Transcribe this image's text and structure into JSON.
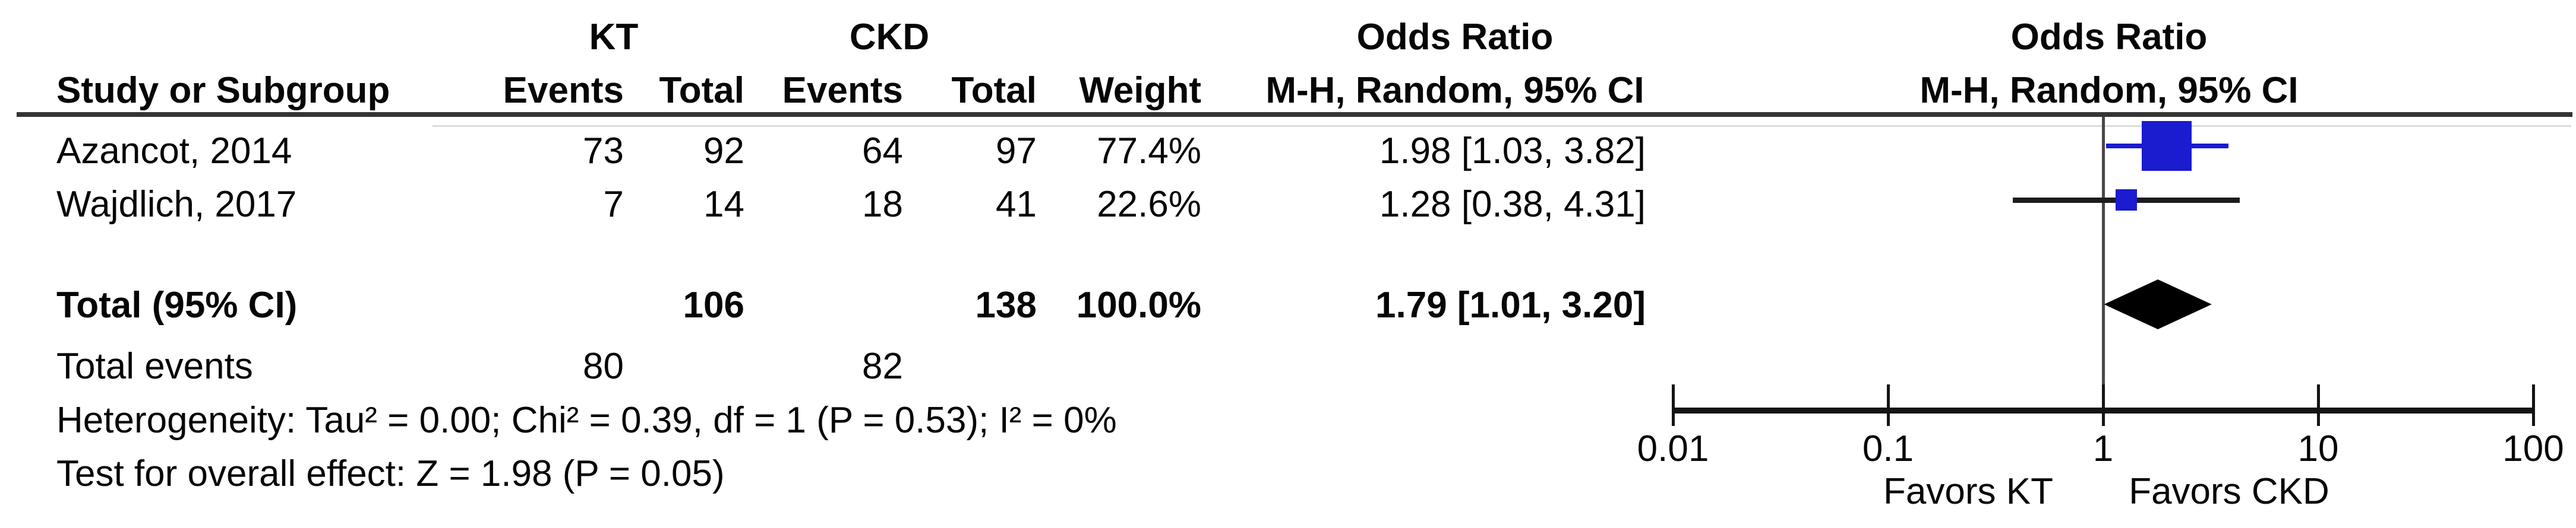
{
  "table": {
    "group_headers": {
      "kt": "KT",
      "ckd": "CKD",
      "or_left": "Odds Ratio",
      "or_right": "Odds Ratio"
    },
    "columns": {
      "study": "Study or Subgroup",
      "kt_events": "Events",
      "kt_total": "Total",
      "ckd_events": "Events",
      "ckd_total": "Total",
      "weight": "Weight",
      "mh_left": "M-H, Random, 95% CI",
      "mh_right": "M-H, Random, 95% CI"
    },
    "rows": [
      {
        "study": "Azancot, 2014",
        "kt_events": "73",
        "kt_total": "92",
        "ckd_events": "64",
        "ckd_total": "97",
        "weight": "77.4%",
        "or_ci": "1.98 [1.03, 3.82]"
      },
      {
        "study": "Wajdlich, 2017",
        "kt_events": "7",
        "kt_total": "14",
        "ckd_events": "18",
        "ckd_total": "41",
        "weight": "22.6%",
        "or_ci": "1.28 [0.38, 4.31]"
      }
    ],
    "total_row": {
      "label": "Total (95% CI)",
      "kt_total": "106",
      "ckd_total": "138",
      "weight": "100.0%",
      "or_ci": "1.79 [1.01, 3.20]"
    },
    "total_events": {
      "label": "Total events",
      "kt": "80",
      "ckd": "82"
    },
    "heterogeneity": "Heterogeneity: Tau² = 0.00; Chi² = 0.39, df = 1 (P = 0.53); I² = 0%",
    "overall_effect": "Test for overall effect: Z = 1.98 (P = 0.05)"
  },
  "chart_data": {
    "type": "forest",
    "x_scale": "log10",
    "axis_range": [
      0.01,
      100
    ],
    "axis_ticks": [
      "0.01",
      "0.1",
      "1",
      "10",
      "100"
    ],
    "axis_tick_values": [
      0.01,
      0.1,
      1,
      10,
      100
    ],
    "favors_left": "Favors KT",
    "favors_right": "Favors CKD",
    "series": [
      {
        "name": "Azancot, 2014",
        "or": 1.98,
        "ci_low": 1.03,
        "ci_high": 3.82,
        "weight_pct": 77.4
      },
      {
        "name": "Wajdlich, 2017",
        "or": 1.28,
        "ci_low": 0.38,
        "ci_high": 4.31,
        "weight_pct": 22.6
      }
    ],
    "total": {
      "name": "Total (95% CI)",
      "or": 1.79,
      "ci_low": 1.01,
      "ci_high": 3.2,
      "weight_pct": 100.0
    },
    "colors": {
      "study_marker": "#1b1bd0",
      "study_ci": [
        "#1b1bd0",
        "#1c1c1c"
      ],
      "total_diamond": "#000000",
      "axis": "#141414"
    }
  }
}
